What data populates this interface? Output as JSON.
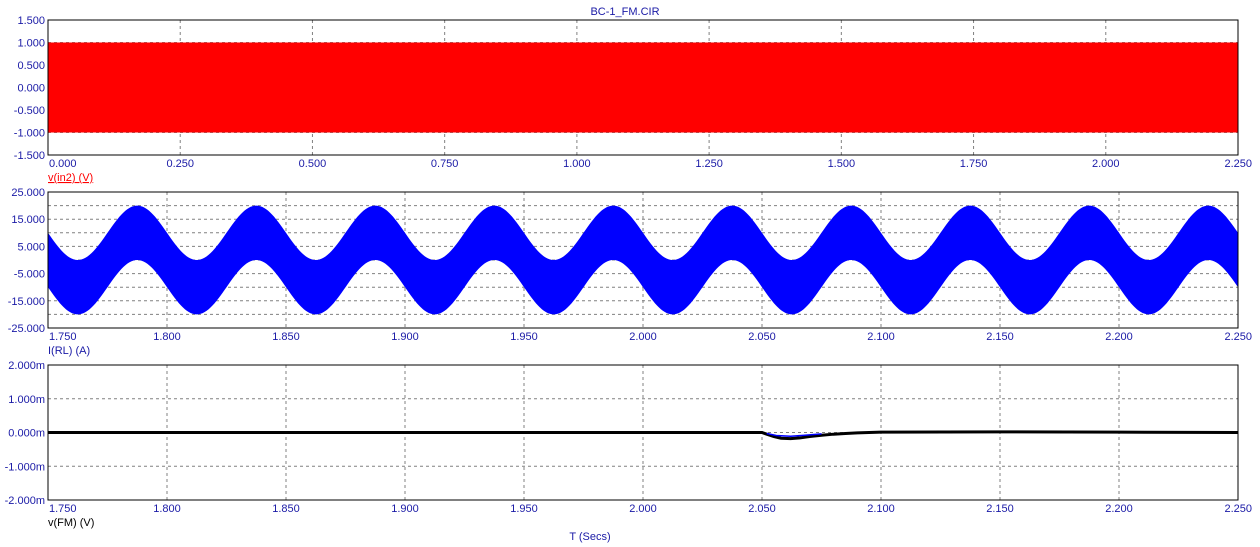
{
  "title": "BC-1_FM.CIR",
  "xaxis_label": "T (Secs)",
  "colors": {
    "axis_text": "#1a1aa6",
    "frame": "#000000",
    "grid": "#808080",
    "background": "#ffffff"
  },
  "chart_data": [
    {
      "type": "line",
      "series": [
        {
          "name": "v(in2) (V)",
          "color": "#ff0000",
          "style": "dense-carrier",
          "envelope_upper": 1.0,
          "envelope_lower": -1.0
        }
      ],
      "xlim": [
        0.0,
        2.25
      ],
      "ylim": [
        -1.5,
        1.5
      ],
      "xticks": [
        0.0,
        0.25,
        0.5,
        0.75,
        1.0,
        1.25,
        1.5,
        1.75,
        2.0,
        2.25
      ],
      "xtick_labels": [
        "0.000",
        "0.250",
        "0.500",
        "0.750",
        "1.000",
        "1.250",
        "1.500",
        "1.750",
        "2.000",
        "2.250"
      ],
      "yticks": [
        1.5,
        1.0,
        0.5,
        0.0,
        -0.5,
        -1.0,
        -1.5
      ],
      "ytick_labels": [
        "1.500",
        "1.000",
        "0.500",
        "0.000",
        "-0.500",
        "-1.000",
        "-1.500"
      ],
      "label_color": "#ff0000",
      "label_underline": true,
      "grid": true
    },
    {
      "type": "line",
      "series": [
        {
          "name": "I(RL) (A)",
          "color": "#0000ff",
          "style": "modulated-band",
          "centre_min": -10.0,
          "centre_max": 10.0,
          "band_half_width": 10.0,
          "mod_frequency_hz": 20.0,
          "mod_phase_x": 1.7875
        }
      ],
      "xlim": [
        1.75,
        2.25
      ],
      "ylim": [
        -25.0,
        25.0
      ],
      "xticks": [
        1.75,
        1.8,
        1.85,
        1.9,
        1.95,
        2.0,
        2.05,
        2.1,
        2.15,
        2.2,
        2.25
      ],
      "xtick_labels": [
        "1.750",
        "1.800",
        "1.850",
        "1.900",
        "1.950",
        "2.000",
        "2.050",
        "2.100",
        "2.150",
        "2.200",
        "2.250"
      ],
      "yticks": [
        25.0,
        15.0,
        5.0,
        -5.0,
        -15.0,
        -25.0
      ],
      "ytick_labels": [
        "25.000",
        "15.000",
        "5.000",
        "-5.000",
        "-15.000",
        "-25.000"
      ],
      "ygrid_values": [
        20.0,
        15.0,
        10.0,
        5.0,
        0.0,
        -5.0,
        -10.0,
        -15.0,
        -20.0
      ],
      "label_color": "#1a1aa6",
      "label_underline": false,
      "grid": true
    },
    {
      "type": "line",
      "series": [
        {
          "name": "v(FM) (V)",
          "color": "#000000",
          "x": [
            1.75,
            2.0,
            2.05,
            2.052,
            2.055,
            2.058,
            2.062,
            2.066,
            2.07,
            2.075,
            2.08,
            2.085,
            2.09,
            2.1,
            2.15,
            2.2,
            2.25
          ],
          "y": [
            0.0,
            0.0,
            0.0,
            -0.05,
            -0.12,
            -0.17,
            -0.18,
            -0.16,
            -0.12,
            -0.08,
            -0.05,
            -0.03,
            -0.01,
            0.01,
            0.02,
            0.01,
            0.0
          ]
        },
        {
          "name": "",
          "color": "#0000ff",
          "x": [
            2.052,
            2.056,
            2.062,
            2.068,
            2.075
          ],
          "y": [
            -0.03,
            -0.09,
            -0.11,
            -0.08,
            -0.04
          ]
        }
      ],
      "unit_suffix": "m",
      "xlim": [
        1.75,
        2.25
      ],
      "ylim": [
        -2.0,
        2.0
      ],
      "xticks": [
        1.75,
        1.8,
        1.85,
        1.9,
        1.95,
        2.0,
        2.05,
        2.1,
        2.15,
        2.2,
        2.25
      ],
      "xtick_labels": [
        "1.750",
        "1.800",
        "1.850",
        "1.900",
        "1.950",
        "2.000",
        "2.050",
        "2.100",
        "2.150",
        "2.200",
        "2.250"
      ],
      "yticks": [
        2.0,
        1.0,
        0.0,
        -1.0,
        -2.0
      ],
      "ytick_labels": [
        "2.000m",
        "1.000m",
        "0.000m",
        "-1.000m",
        "-2.000m"
      ],
      "label_color": "#000000",
      "label_underline": false,
      "grid": true
    }
  ]
}
